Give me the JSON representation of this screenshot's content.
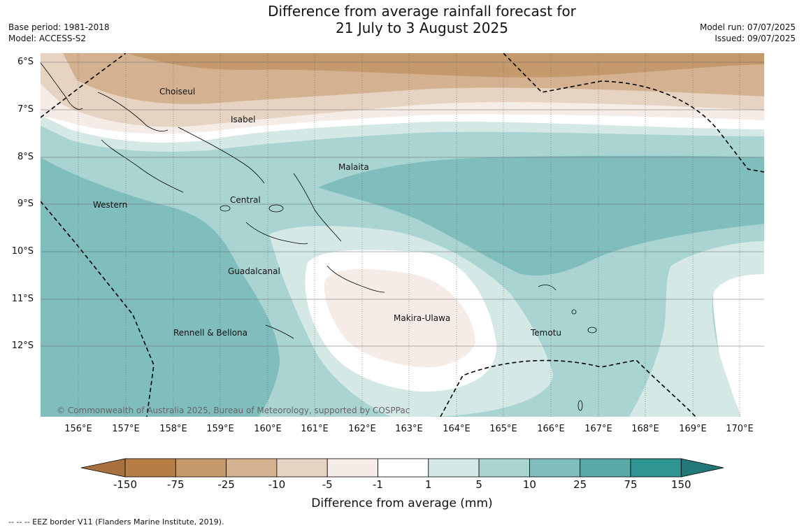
{
  "title": {
    "line1": "Difference from average rainfall forecast for",
    "line2": "21 July to 3 August 2025"
  },
  "meta": {
    "base_period": "Base period: 1981-2018",
    "model": "Model: ACCESS-S2",
    "model_run": "Model run: 07/07/2025",
    "issued": "Issued: 09/07/2025"
  },
  "map": {
    "lat_labels": [
      "6°S",
      "7°S",
      "8°S",
      "9°S",
      "10°S",
      "11°S",
      "12°S"
    ],
    "lon_labels": [
      "156°E",
      "157°E",
      "158°E",
      "159°E",
      "160°E",
      "161°E",
      "162°E",
      "163°E",
      "164°E",
      "165°E",
      "166°E",
      "167°E",
      "168°E",
      "169°E",
      "170°E"
    ],
    "regions": [
      "Choiseul",
      "Isabel",
      "Malaita",
      "Western",
      "Central",
      "Guadalcanal",
      "Makira-Ulawa",
      "Rennell & Bellona",
      "Temotu"
    ],
    "copyright": "© Commonwealth of Australia 2025, Bureau of Meteorology, supported by COSPPac"
  },
  "colorbar": {
    "title": "Difference from average (mm)",
    "labels": [
      "-150",
      "-75",
      "-25",
      "-10",
      "-5",
      "-1",
      "1",
      "5",
      "10",
      "25",
      "75",
      "150"
    ],
    "colors": [
      "#a97140",
      "#b67d45",
      "#c4996c",
      "#d4b291",
      "#e6d3c2",
      "#f5ece8",
      "#ffffff",
      "#d4e8e6",
      "#a9d4d2",
      "#80bebd",
      "#5aa9a8",
      "#2e9592",
      "#217877"
    ]
  },
  "footnote": "--  --  -- EEZ border V11 (Flanders Marine Institute, 2019)."
}
